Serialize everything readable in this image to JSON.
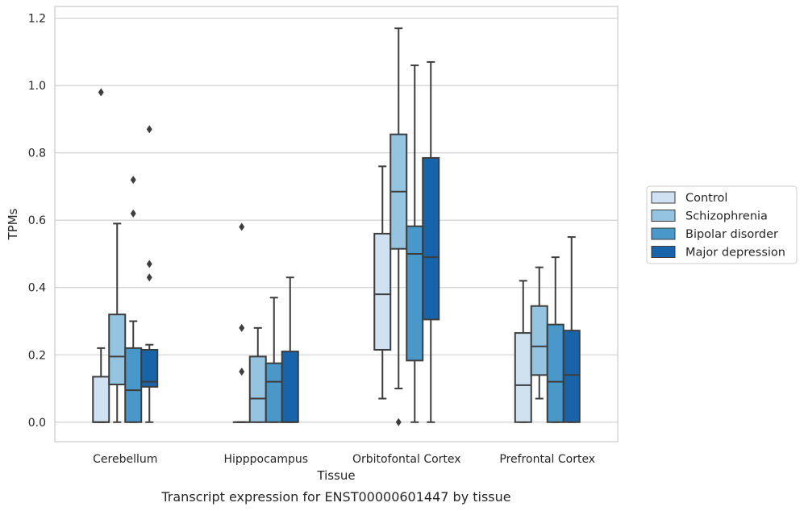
{
  "caption": "Transcript expression for ENST00000601447 by tissue",
  "chart_data": {
    "type": "box",
    "xlabel": "Tissue",
    "ylabel": "TPMs",
    "ylim": [
      -0.058,
      1.235
    ],
    "yticks": [
      0.0,
      0.2,
      0.4,
      0.6,
      0.8,
      1.0,
      1.2
    ],
    "ytick_labels": [
      "0.0",
      "0.2",
      "0.4",
      "0.6",
      "0.8",
      "1.0",
      "1.2"
    ],
    "grid": "horizontal",
    "legend_position": "right",
    "categories": [
      "Cerebellum",
      "Hipppocampus",
      "Orbitofontal Cortex",
      "Prefrontal Cortex"
    ],
    "series": [
      {
        "name": "Control",
        "color": "#d0e1f2",
        "boxes": [
          {
            "min": 0.0,
            "q1": 0.0,
            "median": 0.0,
            "q3": 0.135,
            "max": 0.22,
            "outliers": [
              0.98
            ]
          },
          {
            "min": 0.0,
            "q1": 0.0,
            "median": 0.0,
            "q3": 0.0,
            "max": 0.0,
            "outliers": [
              0.58,
              0.28,
              0.15
            ]
          },
          {
            "min": 0.07,
            "q1": 0.215,
            "median": 0.38,
            "q3": 0.56,
            "max": 0.76,
            "outliers": []
          },
          {
            "min": 0.0,
            "q1": 0.0,
            "median": 0.11,
            "q3": 0.265,
            "max": 0.42,
            "outliers": []
          }
        ]
      },
      {
        "name": "Schizophrenia",
        "color": "#94c4df",
        "boxes": [
          {
            "min": 0.0,
            "q1": 0.112,
            "median": 0.195,
            "q3": 0.32,
            "max": 0.59,
            "outliers": []
          },
          {
            "min": 0.0,
            "q1": 0.0,
            "median": 0.07,
            "q3": 0.195,
            "max": 0.28,
            "outliers": []
          },
          {
            "min": 0.1,
            "q1": 0.515,
            "median": 0.685,
            "q3": 0.855,
            "max": 1.17,
            "outliers": [
              0.0
            ]
          },
          {
            "min": 0.07,
            "q1": 0.14,
            "median": 0.225,
            "q3": 0.345,
            "max": 0.46,
            "outliers": []
          }
        ]
      },
      {
        "name": "Bipolar disorder",
        "color": "#4a98c9",
        "boxes": [
          {
            "min": 0.0,
            "q1": 0.0,
            "median": 0.095,
            "q3": 0.22,
            "max": 0.3,
            "outliers": [
              0.72,
              0.62
            ]
          },
          {
            "min": 0.0,
            "q1": 0.0,
            "median": 0.12,
            "q3": 0.175,
            "max": 0.37,
            "outliers": []
          },
          {
            "min": 0.0,
            "q1": 0.183,
            "median": 0.5,
            "q3": 0.582,
            "max": 1.06,
            "outliers": []
          },
          {
            "min": 0.0,
            "q1": 0.0,
            "median": 0.12,
            "q3": 0.29,
            "max": 0.49,
            "outliers": []
          }
        ]
      },
      {
        "name": "Major depression",
        "color": "#1764ab",
        "boxes": [
          {
            "min": 0.0,
            "q1": 0.105,
            "median": 0.12,
            "q3": 0.215,
            "max": 0.23,
            "outliers": [
              0.87,
              0.47,
              0.43
            ]
          },
          {
            "min": 0.0,
            "q1": 0.0,
            "median": 0.0,
            "q3": 0.21,
            "max": 0.43,
            "outliers": []
          },
          {
            "min": 0.0,
            "q1": 0.305,
            "median": 0.49,
            "q3": 0.785,
            "max": 1.07,
            "outliers": []
          },
          {
            "min": 0.0,
            "q1": 0.0,
            "median": 0.14,
            "q3": 0.272,
            "max": 0.55,
            "outliers": []
          }
        ]
      }
    ]
  }
}
